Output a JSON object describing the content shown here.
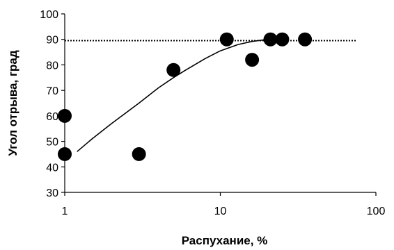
{
  "chart_data": {
    "type": "scatter",
    "xlabel": "Распухание, %",
    "ylabel": "Угол отрыва, град",
    "x_scale": "log",
    "xlim": [
      1,
      100
    ],
    "ylim": [
      30,
      100
    ],
    "x_ticks": [
      1,
      10,
      100
    ],
    "x_tick_labels": [
      "1",
      "10",
      "100"
    ],
    "y_ticks": [
      30,
      40,
      50,
      60,
      70,
      80,
      90,
      100
    ],
    "y_tick_labels": [
      "30",
      "40",
      "50",
      "60",
      "70",
      "80",
      "90",
      "100"
    ],
    "grid": false,
    "legend": "none",
    "series": [
      {
        "kind": "markers",
        "color": "#000000",
        "x": [
          1,
          1,
          3,
          5,
          11,
          16,
          21,
          25,
          35
        ],
        "y": [
          60,
          45,
          45,
          78,
          90,
          82,
          90,
          90,
          90
        ]
      },
      {
        "kind": "fit-line",
        "color": "#000000",
        "x": [
          1.2,
          1.5,
          2,
          3,
          4,
          5,
          6,
          8,
          10,
          13,
          16,
          19,
          21
        ],
        "y": [
          46,
          51,
          57,
          65,
          71,
          75,
          78,
          82.5,
          85.5,
          88,
          89.2,
          89.8,
          90
        ]
      },
      {
        "kind": "reference-dotted",
        "color": "#000000",
        "x": [
          1,
          75
        ],
        "y": [
          89.5,
          89.5
        ]
      }
    ]
  }
}
